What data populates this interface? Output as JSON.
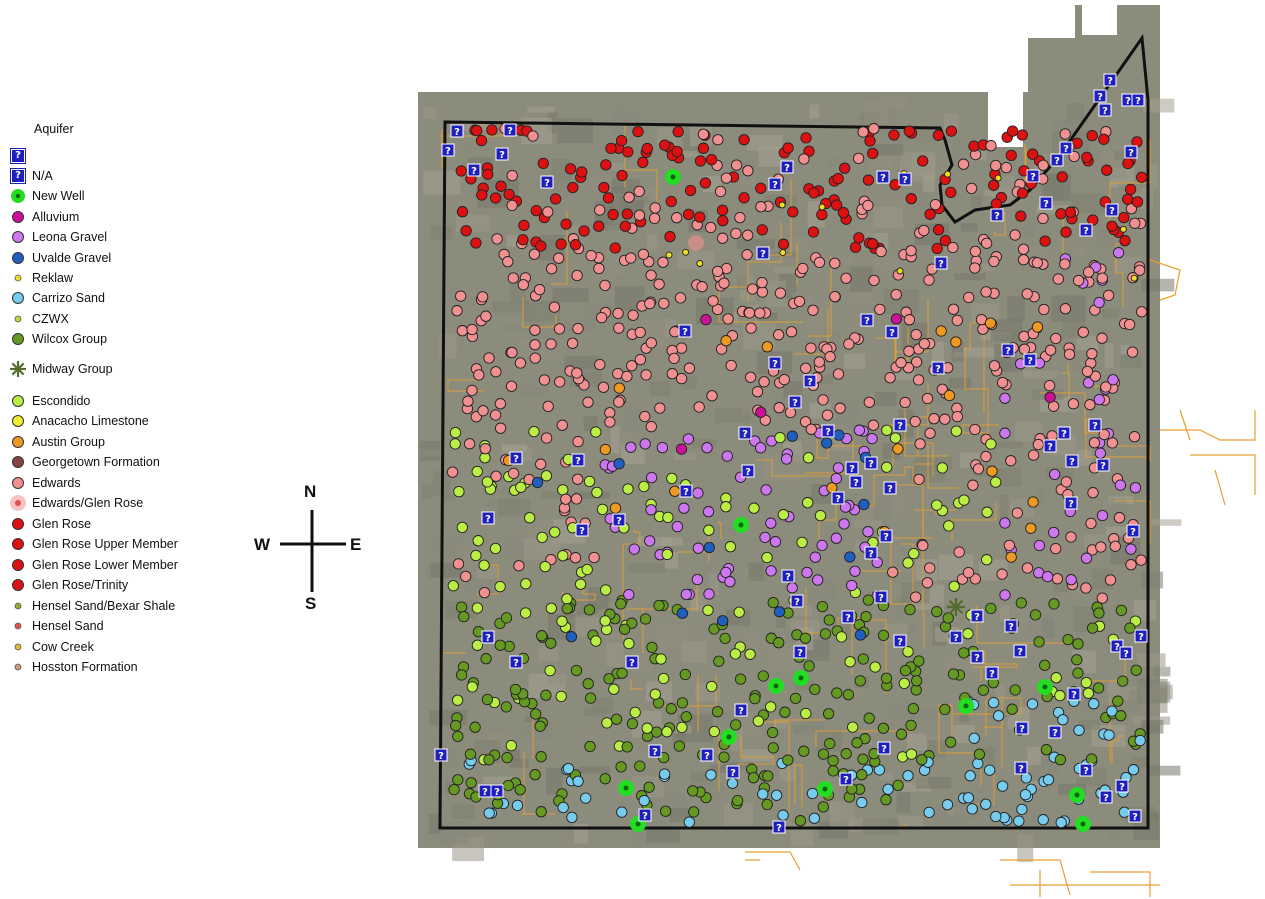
{
  "legend": {
    "title": "Aquifer",
    "items": [
      {
        "label": "",
        "symbol": "q",
        "color": "#1f1fbf"
      },
      {
        "label": "N/A",
        "symbol": "q",
        "color": "#1f1fbf"
      },
      {
        "label": "New Well",
        "symbol": "ring",
        "color": "#22dd22"
      },
      {
        "label": "Alluvium",
        "symbol": "dot",
        "color": "#cc1199"
      },
      {
        "label": "Leona Gravel",
        "symbol": "dot",
        "color": "#cc77ee"
      },
      {
        "label": "Uvalde Gravel",
        "symbol": "dot",
        "color": "#1f5fbf"
      },
      {
        "label": "Reklaw",
        "symbol": "small",
        "color": "#eedd22"
      },
      {
        "label": "Carrizo Sand",
        "symbol": "dot",
        "color": "#77ccee"
      },
      {
        "label": "CZWX",
        "symbol": "small",
        "color": "#bbdd33"
      },
      {
        "label": "Wilcox Group",
        "symbol": "dot",
        "color": "#669922"
      },
      {
        "label": "Midway Group",
        "symbol": "star",
        "color": "#556b2f"
      },
      {
        "label": "Escondido",
        "symbol": "dot",
        "color": "#bbee44"
      },
      {
        "label": "Anacacho Limestone",
        "symbol": "dot",
        "color": "#eeee33"
      },
      {
        "label": "Austin Group",
        "symbol": "dot",
        "color": "#ee9922"
      },
      {
        "label": "Georgetown Formation",
        "symbol": "dot",
        "color": "#884444"
      },
      {
        "label": "Edwards",
        "symbol": "dot",
        "color": "#f09090"
      },
      {
        "label": "Edwards/Glen Rose",
        "symbol": "halo",
        "color": "#f09090"
      },
      {
        "label": "Glen Rose",
        "symbol": "dot",
        "color": "#dd1111"
      },
      {
        "label": "Glen Rose Upper Member",
        "symbol": "dot",
        "color": "#dd1111"
      },
      {
        "label": "Glen Rose Lower Member",
        "symbol": "dot",
        "color": "#dd1111"
      },
      {
        "label": "Glen Rose/Trinity",
        "symbol": "dot",
        "color": "#dd1111"
      },
      {
        "label": "Hensel Sand/Bexar Shale",
        "symbol": "small",
        "color": "#99aa33"
      },
      {
        "label": "Hensel Sand",
        "symbol": "small",
        "color": "#dd5544"
      },
      {
        "label": "Cow Creek",
        "symbol": "small",
        "color": "#ddbb33"
      },
      {
        "label": "Hosston Formation",
        "symbol": "small",
        "color": "#cc9977"
      }
    ]
  },
  "compass": {
    "n": "N",
    "s": "S",
    "e": "E",
    "w": "W"
  },
  "map": {
    "imagery_color": "#8c8c7c",
    "road_color": "#e8a030",
    "boundary_color": "#111111",
    "question_glyph": "?"
  }
}
